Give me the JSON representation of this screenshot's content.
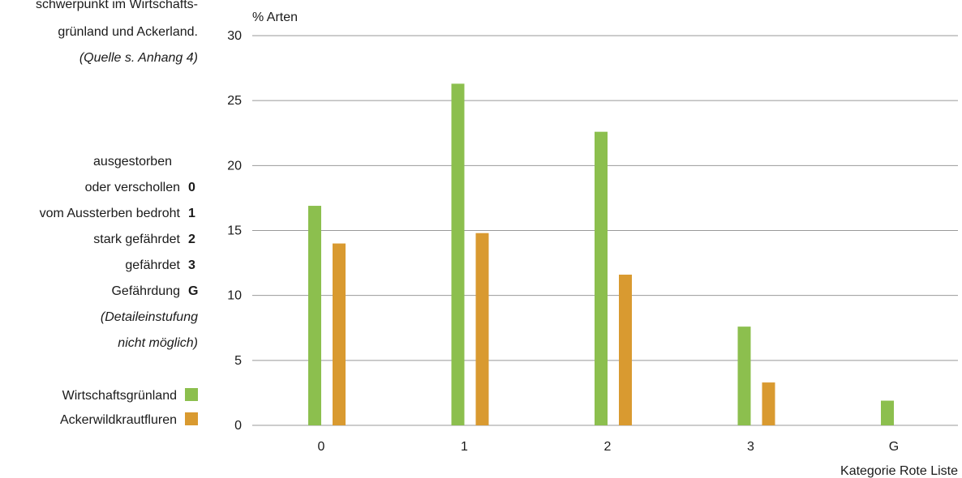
{
  "sidebar": {
    "intro_lines": [
      "schwerpunkt im Wirtschafts-",
      "grünland und Ackerland.",
      "(Quelle s. Anhang 4)"
    ],
    "categories": [
      {
        "label": "ausgestorben",
        "code": ""
      },
      {
        "label": "oder verschollen",
        "code": "0"
      },
      {
        "label": "vom Aussterben bedroht",
        "code": "1"
      },
      {
        "label": "stark gefährdet",
        "code": "2"
      },
      {
        "label": "gefährdet",
        "code": "3"
      },
      {
        "label": "Gefährdung",
        "code": "G"
      }
    ],
    "note_lines": [
      "(Detaileinstufung",
      "nicht möglich)"
    ]
  },
  "colors": {
    "green": "#8cbf4e",
    "orange": "#d99a30",
    "grid": "#999999"
  },
  "chart_data": {
    "type": "bar",
    "ylabel": "% Arten",
    "xlabel": "Kategorie Rote Liste",
    "categories": [
      "0",
      "1",
      "2",
      "3",
      "G"
    ],
    "ylim": [
      0,
      30
    ],
    "yticks": [
      0,
      5,
      10,
      15,
      20,
      25,
      30
    ],
    "grid": true,
    "legend_position": "left",
    "series": [
      {
        "name": "Wirtschaftsgrünland",
        "color": "#8cbf4e",
        "values": [
          16.9,
          26.3,
          22.6,
          7.6,
          1.9
        ]
      },
      {
        "name": "Ackerwildkrautfluren",
        "color": "#d99a30",
        "values": [
          14.0,
          14.8,
          11.6,
          3.3,
          null
        ]
      }
    ]
  }
}
